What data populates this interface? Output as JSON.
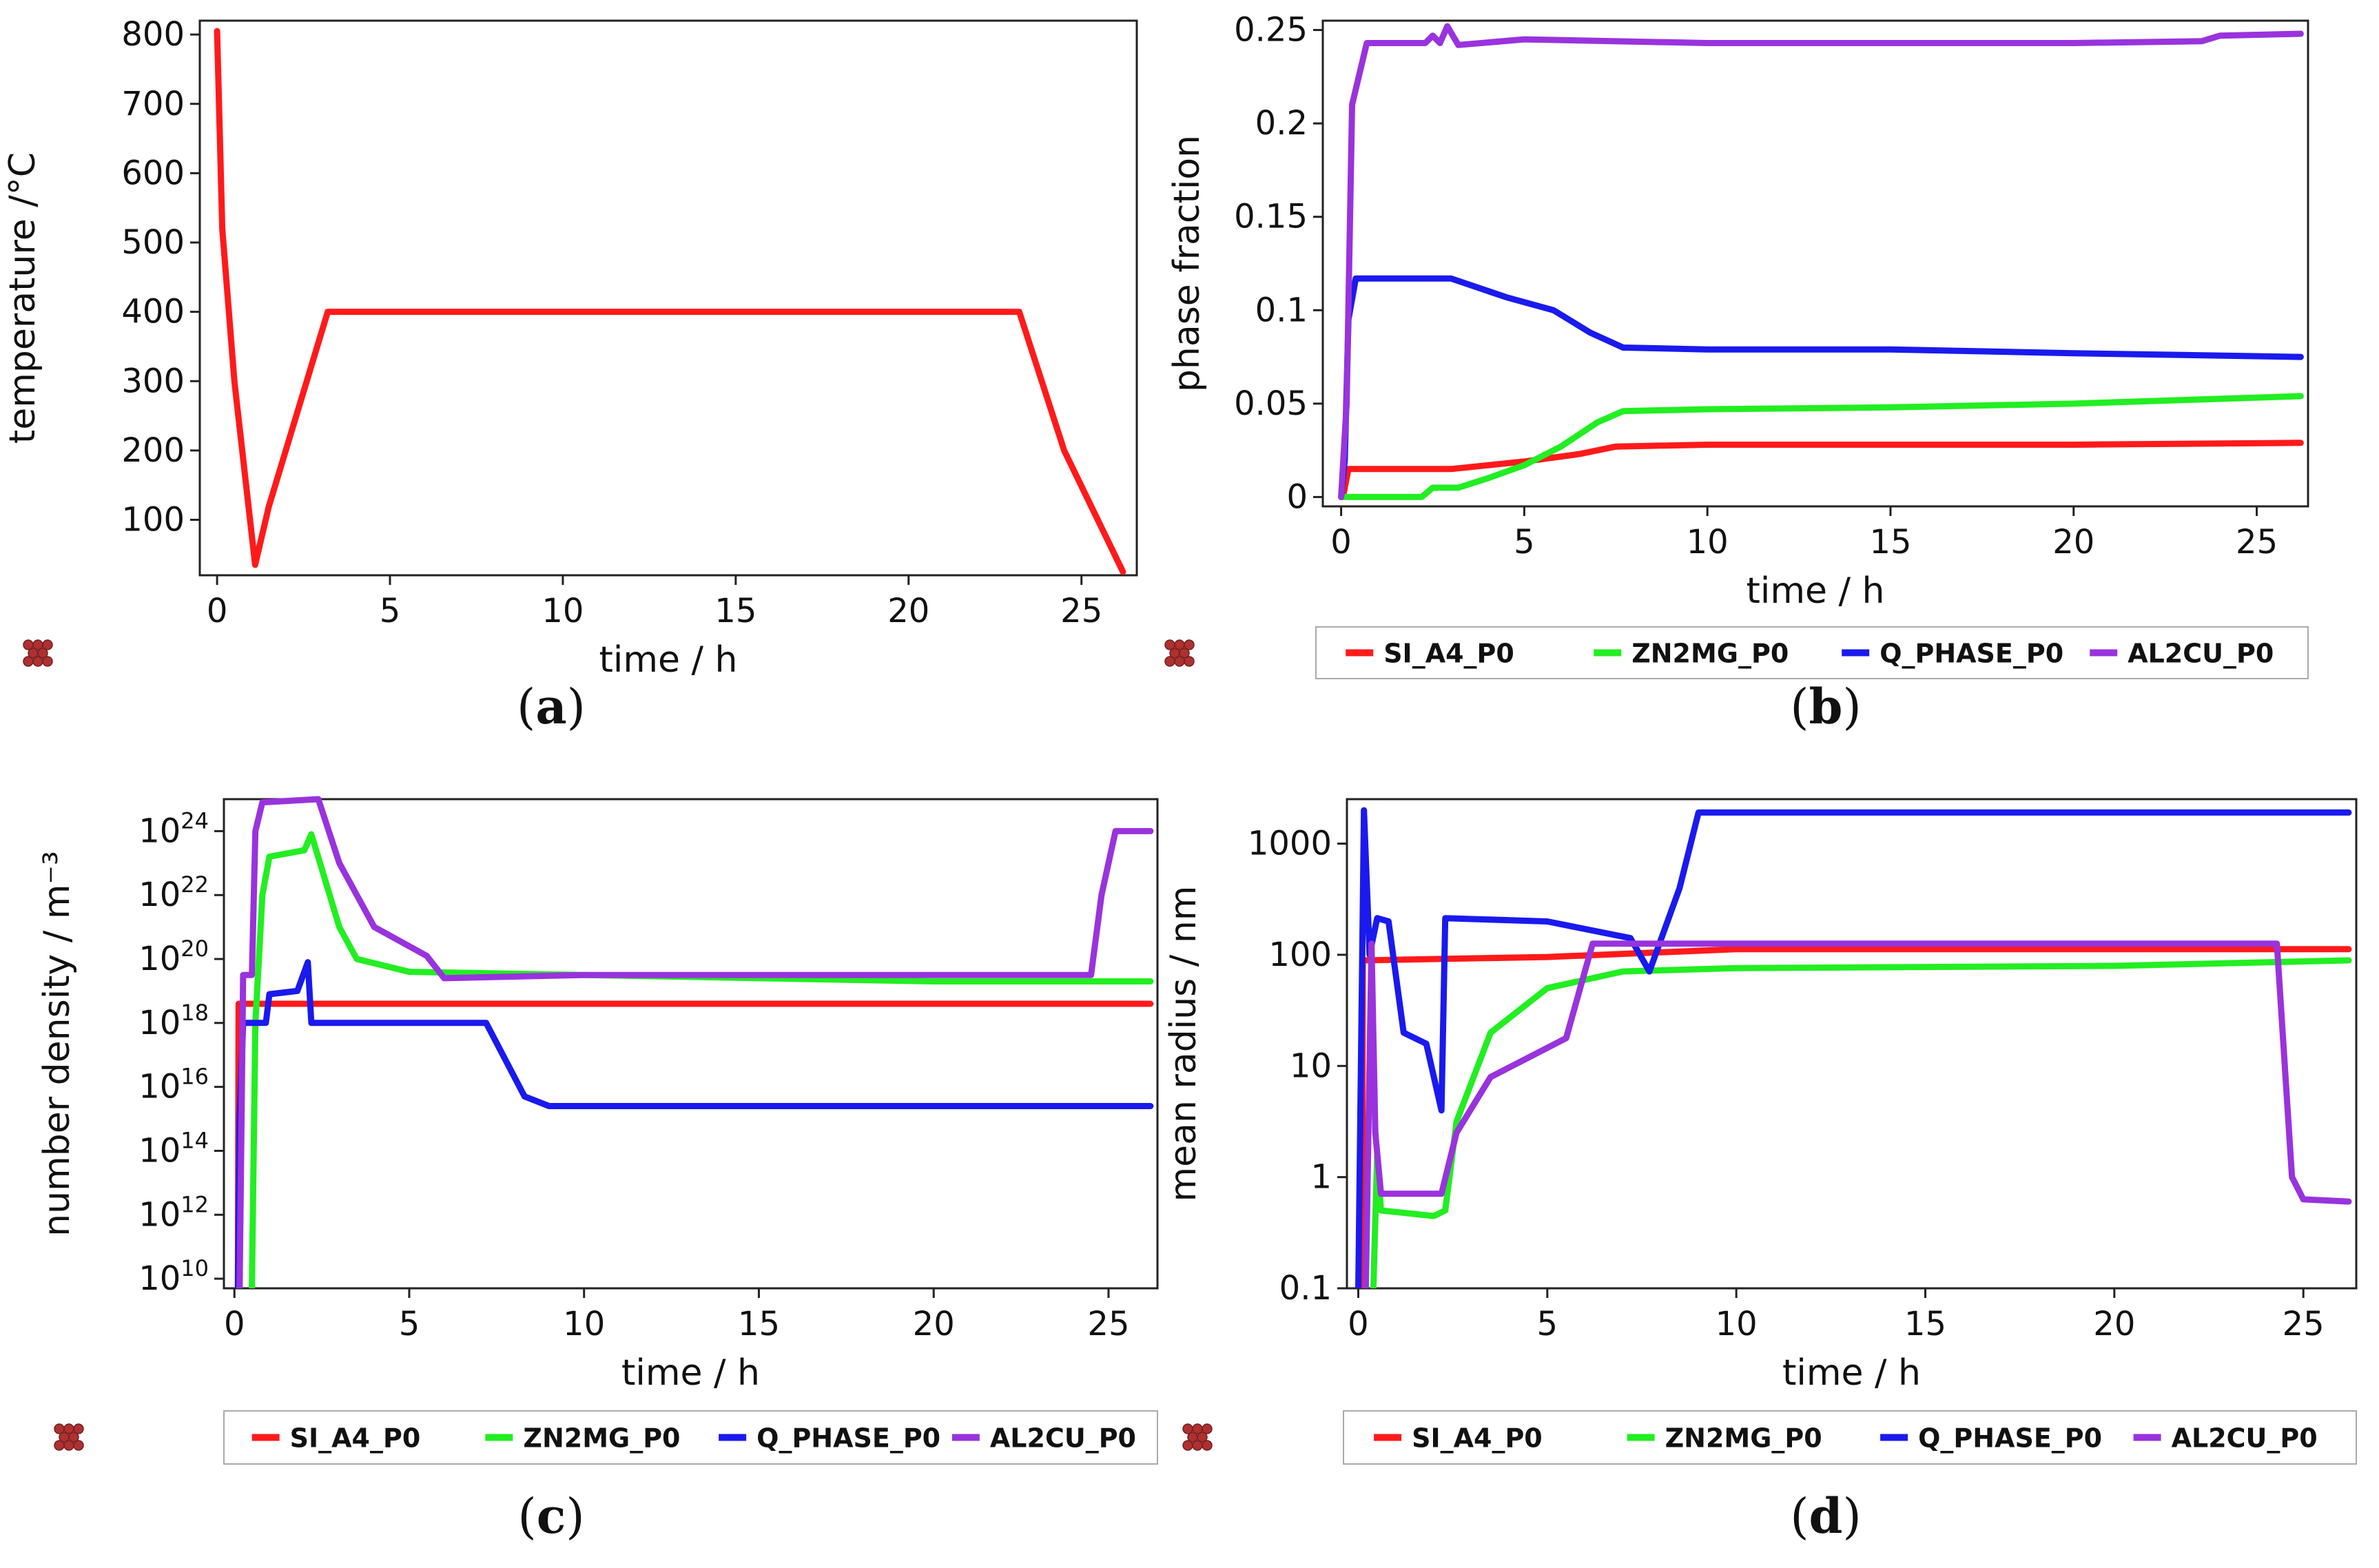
{
  "colors": {
    "SI_A4_P0": "#ff1a1a",
    "ZN2MG_P0": "#22ee22",
    "Q_PHASE_P0": "#1a1aee",
    "AL2CU_P0": "#9933dd"
  },
  "legend_icon": "stacked-spheres-icon",
  "chart_data": [
    {
      "panel_label": {
        "open": "(",
        "letter": "a",
        "close": ")"
      },
      "type": "line",
      "xlabel": "time / h",
      "ylabel": "temperature /°C",
      "xlim": [
        -0.5,
        26.6
      ],
      "ylim": [
        20,
        820
      ],
      "yscale": "linear",
      "xticks": [
        "0",
        "5",
        "10",
        "15",
        "20",
        "25"
      ],
      "yticks": [
        "100",
        "200",
        "300",
        "400",
        "500",
        "600",
        "700",
        "800"
      ],
      "legend": [],
      "series": [
        {
          "name": "temperature",
          "color": "#ff1a1a",
          "points": [
            [
              0,
              805
            ],
            [
              0.15,
              520
            ],
            [
              0.5,
              300
            ],
            [
              1.1,
              35
            ],
            [
              1.5,
              120
            ],
            [
              3.2,
              400
            ],
            [
              23.2,
              400
            ],
            [
              24.5,
              200
            ],
            [
              26.2,
              25
            ]
          ]
        }
      ]
    },
    {
      "panel_label": {
        "open": "(",
        "letter": "b",
        "close": ")"
      },
      "type": "line",
      "xlabel": "time / h",
      "ylabel": "phase fraction",
      "xlim": [
        -0.5,
        26.4
      ],
      "ylim": [
        -0.005,
        0.255
      ],
      "yscale": "linear",
      "xticks": [
        "0",
        "5",
        "10",
        "15",
        "20",
        "25"
      ],
      "yticks": [
        "0",
        "0.05",
        "0.1",
        "0.15",
        "0.2",
        "0.25"
      ],
      "legend": [
        "SI_A4_P0",
        "ZN2MG_P0",
        "Q_PHASE_P0",
        "AL2CU_P0"
      ],
      "series": [
        {
          "name": "SI_A4_P0",
          "color": "#ff1a1a",
          "points": [
            [
              0.05,
              0
            ],
            [
              0.2,
              0.015
            ],
            [
              3,
              0.015
            ],
            [
              5,
              0.019
            ],
            [
              6.5,
              0.023
            ],
            [
              7.5,
              0.027
            ],
            [
              10,
              0.028
            ],
            [
              20,
              0.028
            ],
            [
              26.2,
              0.029
            ]
          ]
        },
        {
          "name": "ZN2MG_P0",
          "color": "#22ee22",
          "points": [
            [
              0,
              0
            ],
            [
              2.2,
              0
            ],
            [
              2.5,
              0.005
            ],
            [
              3.2,
              0.005
            ],
            [
              4,
              0.01
            ],
            [
              5,
              0.017
            ],
            [
              6,
              0.027
            ],
            [
              7,
              0.04
            ],
            [
              7.7,
              0.046
            ],
            [
              10,
              0.047
            ],
            [
              15,
              0.048
            ],
            [
              20,
              0.05
            ],
            [
              26.2,
              0.054
            ]
          ]
        },
        {
          "name": "Q_PHASE_P0",
          "color": "#1a1aee",
          "points": [
            [
              0,
              0
            ],
            [
              0.1,
              0.02
            ],
            [
              0.2,
              0.095
            ],
            [
              0.4,
              0.117
            ],
            [
              3,
              0.117
            ],
            [
              4.5,
              0.107
            ],
            [
              5.8,
              0.1
            ],
            [
              6.8,
              0.088
            ],
            [
              7.7,
              0.08
            ],
            [
              10,
              0.079
            ],
            [
              15,
              0.079
            ],
            [
              20,
              0.077
            ],
            [
              26.2,
              0.075
            ]
          ]
        },
        {
          "name": "AL2CU_P0",
          "color": "#9933dd",
          "points": [
            [
              0,
              0
            ],
            [
              0.15,
              0.05
            ],
            [
              0.3,
              0.21
            ],
            [
              0.7,
              0.243
            ],
            [
              2.3,
              0.243
            ],
            [
              2.5,
              0.247
            ],
            [
              2.7,
              0.243
            ],
            [
              2.9,
              0.252
            ],
            [
              3.2,
              0.242
            ],
            [
              5,
              0.245
            ],
            [
              10,
              0.243
            ],
            [
              20,
              0.243
            ],
            [
              23.5,
              0.244
            ],
            [
              24,
              0.247
            ],
            [
              26.2,
              0.248
            ]
          ]
        }
      ]
    },
    {
      "panel_label": {
        "open": "(",
        "letter": "c",
        "close": ")"
      },
      "type": "line",
      "xlabel": "time / h",
      "ylabel": "number density / m⁻³",
      "xlim": [
        -0.3,
        26.4
      ],
      "ylim": [
        9.7,
        25.0
      ],
      "yscale": "log10",
      "xticks": [
        "0",
        "5",
        "10",
        "15",
        "20",
        "25"
      ],
      "yticks": [
        {
          "base": "10",
          "exp": "10"
        },
        {
          "base": "10",
          "exp": "12"
        },
        {
          "base": "10",
          "exp": "14"
        },
        {
          "base": "10",
          "exp": "16"
        },
        {
          "base": "10",
          "exp": "18"
        },
        {
          "base": "10",
          "exp": "20"
        },
        {
          "base": "10",
          "exp": "22"
        },
        {
          "base": "10",
          "exp": "24"
        }
      ],
      "legend": [
        "SI_A4_P0",
        "ZN2MG_P0",
        "Q_PHASE_P0",
        "AL2CU_P0"
      ],
      "series": [
        {
          "name": "SI_A4_P0",
          "color": "#ff1a1a",
          "points": [
            [
              0.1,
              9.7
            ],
            [
              0.12,
              18.6
            ],
            [
              26.2,
              18.6
            ]
          ]
        },
        {
          "name": "ZN2MG_P0",
          "color": "#22ee22",
          "points": [
            [
              0.5,
              9.7
            ],
            [
              0.6,
              18
            ],
            [
              0.8,
              22
            ],
            [
              1,
              23.2
            ],
            [
              2,
              23.4
            ],
            [
              2.2,
              23.9
            ],
            [
              3,
              21
            ],
            [
              3.5,
              20
            ],
            [
              5,
              19.6
            ],
            [
              10,
              19.5
            ],
            [
              20,
              19.3
            ],
            [
              26.2,
              19.3
            ]
          ]
        },
        {
          "name": "Q_PHASE_P0",
          "color": "#1a1aee",
          "points": [
            [
              0.1,
              9.7
            ],
            [
              0.15,
              15
            ],
            [
              0.25,
              18
            ],
            [
              0.9,
              18
            ],
            [
              1,
              18.9
            ],
            [
              1.8,
              19
            ],
            [
              2.1,
              19.9
            ],
            [
              2.2,
              18
            ],
            [
              7.2,
              18
            ],
            [
              8.3,
              15.7
            ],
            [
              9,
              15.4
            ],
            [
              26.2,
              15.4
            ]
          ]
        },
        {
          "name": "AL2CU_P0",
          "color": "#9933dd",
          "points": [
            [
              0.15,
              9.7
            ],
            [
              0.25,
              19.5
            ],
            [
              0.5,
              19.5
            ],
            [
              0.6,
              24
            ],
            [
              0.8,
              24.9
            ],
            [
              2.4,
              25
            ],
            [
              3,
              23
            ],
            [
              4,
              21
            ],
            [
              5.5,
              20.1
            ],
            [
              6,
              19.4
            ],
            [
              10,
              19.5
            ],
            [
              24.5,
              19.5
            ],
            [
              24.8,
              22
            ],
            [
              25.2,
              24
            ],
            [
              26.2,
              24
            ]
          ]
        }
      ]
    },
    {
      "panel_label": {
        "open": "(",
        "letter": "d",
        "close": ")"
      },
      "type": "line",
      "xlabel": "time / h",
      "ylabel": "mean radius / nm",
      "xlim": [
        -0.3,
        26.4
      ],
      "ylim": [
        -1.0,
        3.4
      ],
      "yscale": "log10",
      "xticks": [
        "0",
        "5",
        "10",
        "15",
        "20",
        "25"
      ],
      "yticks": [
        "0.1",
        "1",
        "10",
        "100",
        "1000"
      ],
      "legend": [
        "SI_A4_P0",
        "ZN2MG_P0",
        "Q_PHASE_P0",
        "AL2CU_P0"
      ],
      "series": [
        {
          "name": "SI_A4_P0",
          "color": "#ff1a1a",
          "points": [
            [
              0.1,
              -1.0
            ],
            [
              0.12,
              1.95
            ],
            [
              5,
              1.98
            ],
            [
              10,
              2.05
            ],
            [
              20,
              2.05
            ],
            [
              26.2,
              2.05
            ]
          ]
        },
        {
          "name": "ZN2MG_P0",
          "color": "#22ee22",
          "points": [
            [
              0.4,
              -1.0
            ],
            [
              0.5,
              0.2
            ],
            [
              0.6,
              -0.3
            ],
            [
              2,
              -0.35
            ],
            [
              2.3,
              -0.3
            ],
            [
              2.6,
              0.5
            ],
            [
              3.5,
              1.3
            ],
            [
              5,
              1.7
            ],
            [
              7,
              1.85
            ],
            [
              10,
              1.88
            ],
            [
              20,
              1.9
            ],
            [
              26.2,
              1.95
            ]
          ]
        },
        {
          "name": "Q_PHASE_P0",
          "color": "#1a1aee",
          "points": [
            [
              0,
              -1.0
            ],
            [
              0.15,
              3.3
            ],
            [
              0.3,
              2.0
            ],
            [
              0.5,
              2.33
            ],
            [
              0.8,
              2.3
            ],
            [
              1.2,
              1.3
            ],
            [
              1.8,
              1.2
            ],
            [
              2.2,
              0.6
            ],
            [
              2.3,
              2.33
            ],
            [
              5,
              2.3
            ],
            [
              7.2,
              2.15
            ],
            [
              7.7,
              1.85
            ],
            [
              8.5,
              2.6
            ],
            [
              9,
              3.28
            ],
            [
              26.2,
              3.28
            ]
          ]
        },
        {
          "name": "AL2CU_P0",
          "color": "#9933dd",
          "points": [
            [
              0.2,
              -1.0
            ],
            [
              0.35,
              2.1
            ],
            [
              0.45,
              0.4
            ],
            [
              0.6,
              -0.15
            ],
            [
              2.2,
              -0.15
            ],
            [
              2.6,
              0.4
            ],
            [
              3.5,
              0.9
            ],
            [
              5.5,
              1.25
            ],
            [
              6.2,
              2.1
            ],
            [
              24.3,
              2.1
            ],
            [
              24.7,
              0
            ],
            [
              25,
              -0.2
            ],
            [
              26.2,
              -0.22
            ]
          ]
        }
      ]
    }
  ]
}
